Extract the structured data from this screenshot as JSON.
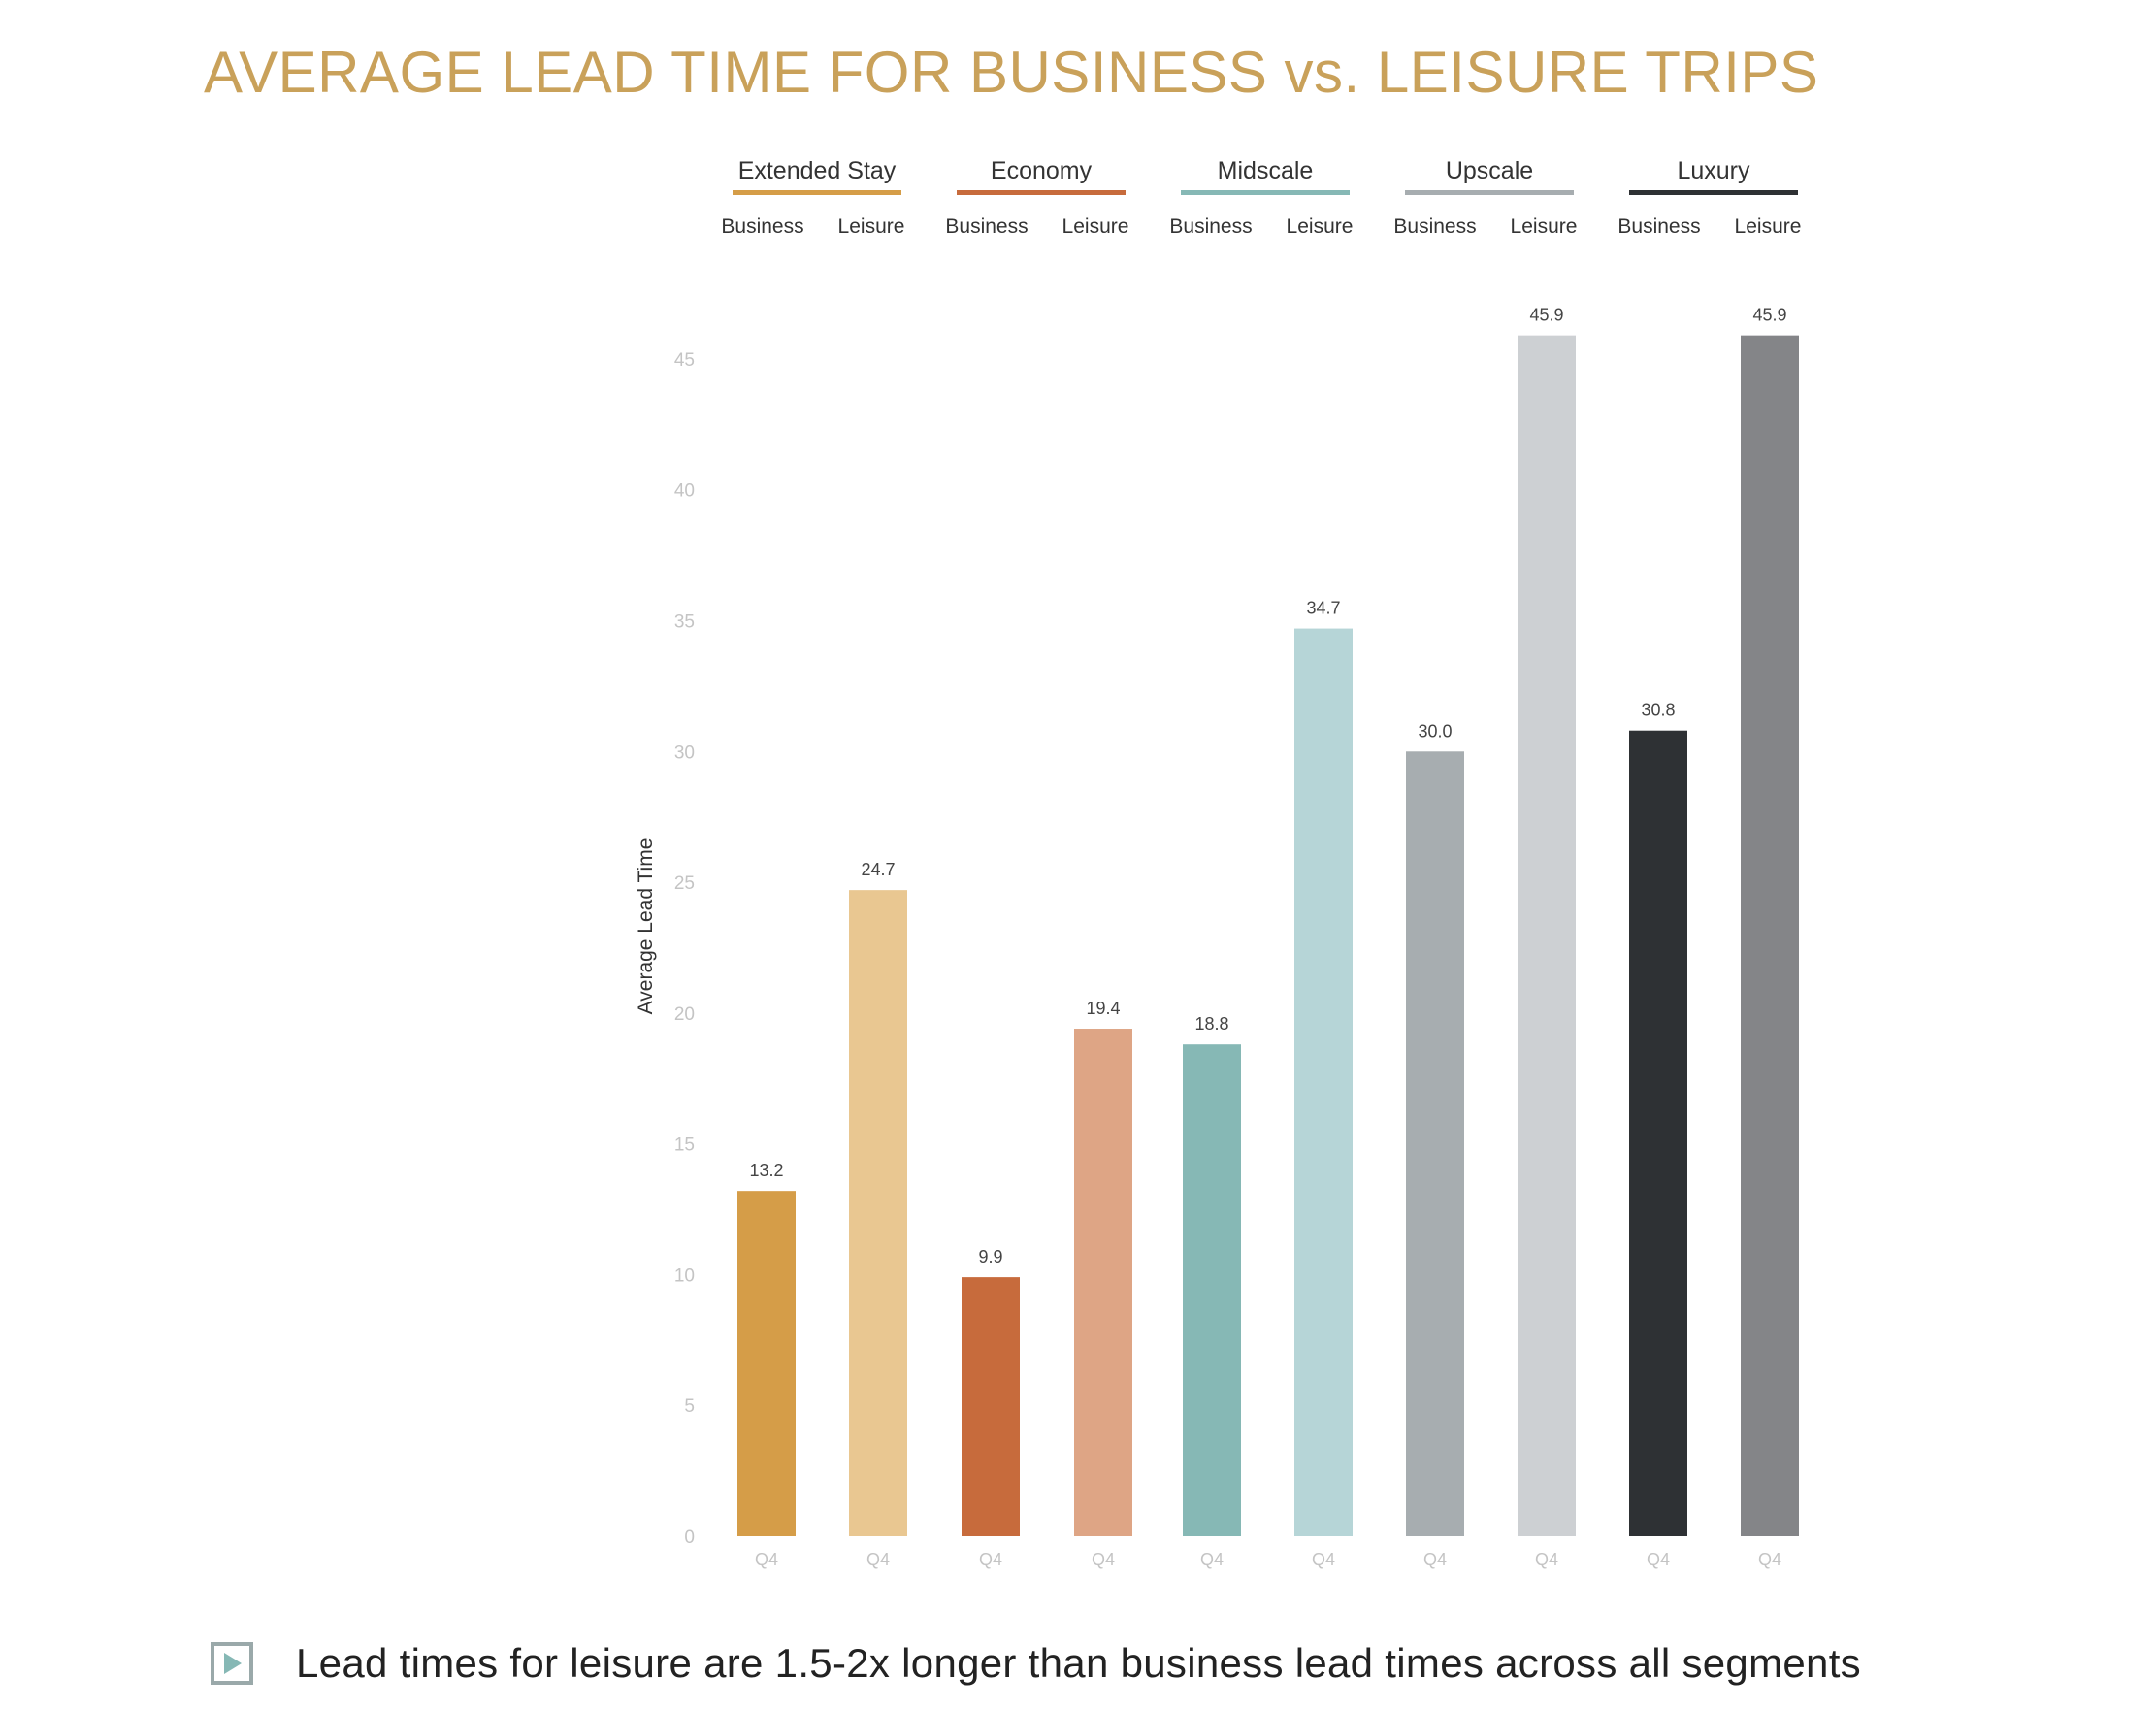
{
  "title": "AVERAGE LEAD TIME FOR BUSINESS vs. LEISURE TRIPS",
  "footnote": "Lead times for leisure are 1.5-2x longer than business lead times across all segments",
  "legend": [
    {
      "name": "Extended Stay",
      "color": "#d59d48",
      "sub": [
        "Business",
        "Leisure"
      ]
    },
    {
      "name": "Economy",
      "color": "#c76b3c",
      "sub": [
        "Business",
        "Leisure"
      ]
    },
    {
      "name": "Midscale",
      "color": "#86b8b5",
      "sub": [
        "Business",
        "Leisure"
      ]
    },
    {
      "name": "Upscale",
      "color": "#a7adb0",
      "sub": [
        "Business",
        "Leisure"
      ]
    },
    {
      "name": "Luxury",
      "color": "#2e3134",
      "sub": [
        "Business",
        "Leisure"
      ]
    }
  ],
  "chart_data": {
    "type": "bar",
    "ylabel": "Average Lead Time",
    "xlabel": "",
    "ylim": [
      0,
      47
    ],
    "yticks": [
      0,
      5,
      10,
      15,
      20,
      25,
      30,
      35,
      40,
      45
    ],
    "categories": [
      "Q4",
      "Q4",
      "Q4",
      "Q4",
      "Q4",
      "Q4",
      "Q4",
      "Q4",
      "Q4",
      "Q4"
    ],
    "values": [
      13.2,
      24.7,
      9.9,
      19.4,
      18.8,
      34.7,
      30.0,
      45.9,
      30.8,
      45.9
    ],
    "labels": [
      "13.2",
      "24.7",
      "9.9",
      "19.4",
      "18.8",
      "34.7",
      "30.0",
      "45.9",
      "30.8",
      "45.9"
    ],
    "colors": [
      "#d59d48",
      "#e9c791",
      "#c76b3c",
      "#dea585",
      "#86b8b5",
      "#b6d5d7",
      "#a7adb0",
      "#cdd0d3",
      "#2e3134",
      "#848588"
    ],
    "grid": false,
    "legend_position": "top"
  }
}
